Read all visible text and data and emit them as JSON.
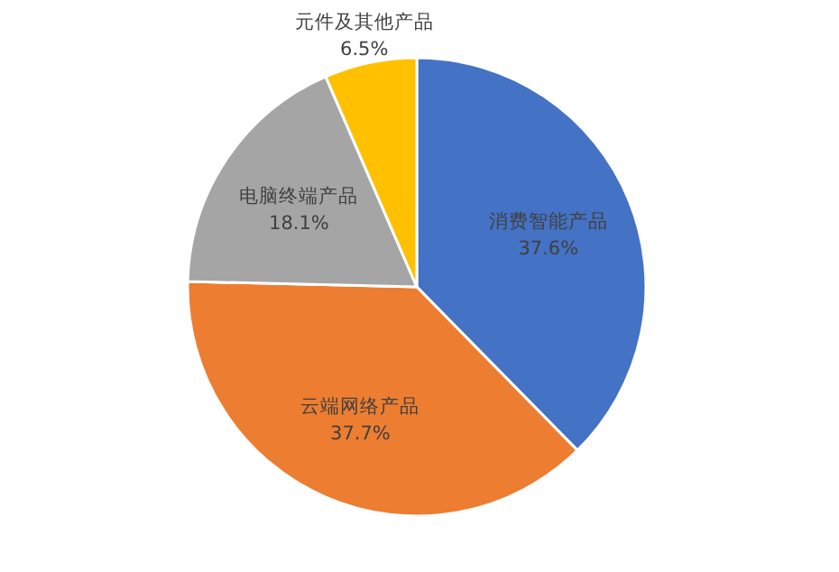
{
  "chart_data": {
    "type": "pie",
    "categories": [
      "消费智能产品",
      "云端网络产品",
      "电脑终端产品",
      "元件及其他产品"
    ],
    "values": [
      37.6,
      37.7,
      18.1,
      6.5
    ],
    "value_labels": [
      "37.6%",
      "37.7%",
      "18.1%",
      "6.5%"
    ],
    "colors": [
      "#4472c4",
      "#ed7d31",
      "#a5a5a5",
      "#ffc000"
    ],
    "legend": false
  }
}
